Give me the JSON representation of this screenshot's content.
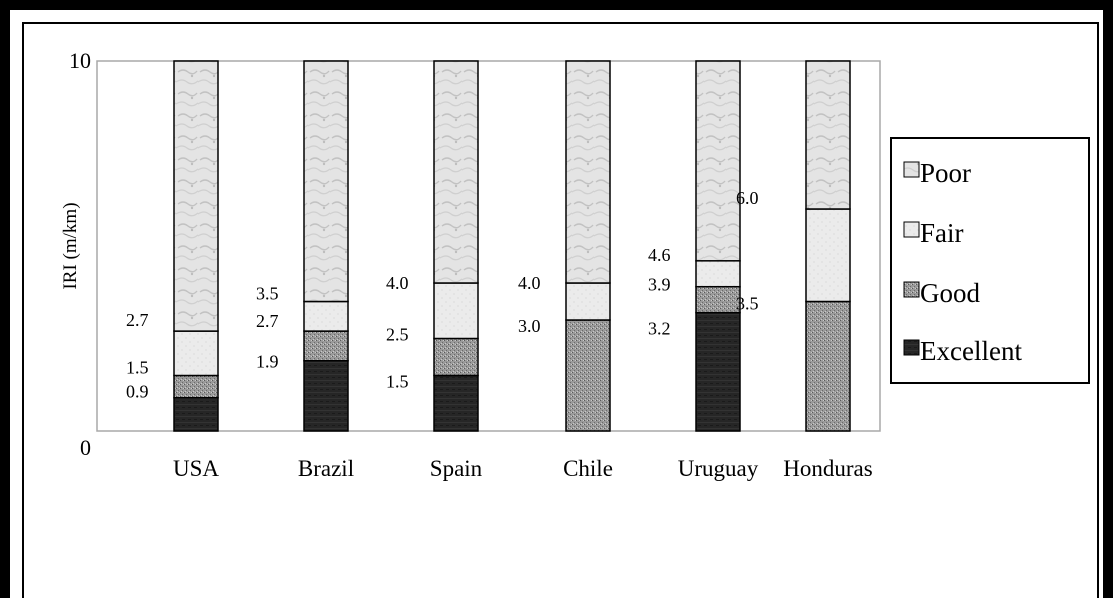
{
  "chart_data": {
    "type": "bar",
    "stacked": true,
    "ylabel": "IRI (m/km)",
    "ylim": [
      0,
      10
    ],
    "yticks": [
      "0",
      "10"
    ],
    "categories": [
      "USA",
      "Brazil",
      "Spain",
      "Chile",
      "Uruguay",
      "Honduras"
    ],
    "bands": [
      {
        "name": "Excellent",
        "color": "#222222",
        "from": [
          0,
          0,
          0,
          null,
          0,
          null
        ],
        "to": [
          0.9,
          1.9,
          1.5,
          null,
          3.2,
          null
        ]
      },
      {
        "name": "Good",
        "color": "#8a8a8a",
        "from": [
          0.9,
          1.9,
          1.5,
          0,
          3.2,
          0
        ],
        "to": [
          1.5,
          2.7,
          2.5,
          3.0,
          3.9,
          3.5
        ]
      },
      {
        "name": "Fair",
        "color": "#e6e6e6",
        "from": [
          1.5,
          2.7,
          2.5,
          3.0,
          3.9,
          3.5
        ],
        "to": [
          2.7,
          3.5,
          4.0,
          4.0,
          4.6,
          6.0
        ]
      },
      {
        "name": "Poor",
        "color": "#d8d8d8",
        "from": [
          2.7,
          3.5,
          4.0,
          4.0,
          4.6,
          6.0
        ],
        "to": [
          10,
          10,
          10,
          10,
          10,
          10
        ]
      }
    ],
    "data_labels": [
      [
        "0.9",
        "1.5",
        "2.7"
      ],
      [
        "1.9",
        "2.7",
        "3.5"
      ],
      [
        "1.5",
        "2.5",
        "4.0"
      ],
      [
        "3.0",
        "4.0"
      ],
      [
        "3.2",
        "3.9",
        "4.6"
      ],
      [
        "3.5",
        "6.0"
      ]
    ],
    "legend": {
      "position": "right",
      "entries": [
        "Poor",
        "Fair",
        "Good",
        "Excellent"
      ]
    },
    "grid": false
  }
}
